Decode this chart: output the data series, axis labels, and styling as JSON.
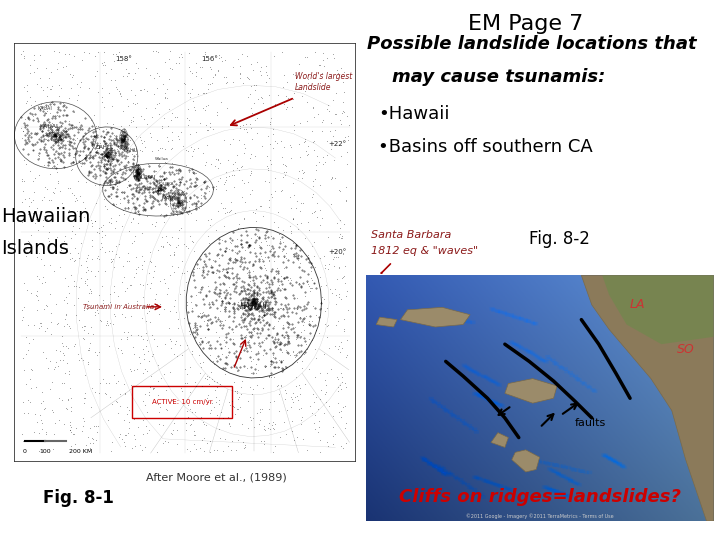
{
  "title": "EM Page 7",
  "title_fontsize": 16,
  "title_color": "#000000",
  "background_color": "#ffffff",
  "heading_line1": "Possible landslide locations that",
  "heading_line2": "    may cause tsunamis:",
  "heading_fontsize": 13,
  "bullet1": "•Hawaii",
  "bullet2": "•Basins off southern CA",
  "bullet_fontsize": 13,
  "fig81_label": "Fig. 8-1",
  "fig81_caption": "After Moore et al., (1989)",
  "fig82_label": "Fig. 8-2",
  "santa_barbara_line1": "Santa Barbara",
  "santa_barbara_line2": "1812 eq & \"waves\"",
  "santa_barbara_color": "#8b1a1a",
  "la_text": "LA",
  "la_color": "#cc3333",
  "so_text": "SO",
  "so_color": "#cc3333",
  "faults_text": "faults",
  "faults_color": "#000000",
  "cliffs_text": "Cliffs on ridges=landslides?",
  "cliffs_color": "#cc0000",
  "cliffs_fontsize": 13,
  "hawaii_label_line1": "Hawaiian",
  "hawaii_label_line2": "Islands",
  "hawaii_label_color": "#000000",
  "hawaii_label_fontsize": 14,
  "worlds_largest_text": "World's largest\nLandslide",
  "worlds_largest_color": "#8b1a1a",
  "tsunami_text": "Tsunami in Australia?",
  "tsunami_color": "#8b1a1a",
  "active_text": "ACTIVE: 10 cm/yr",
  "active_color": "#cc0000"
}
